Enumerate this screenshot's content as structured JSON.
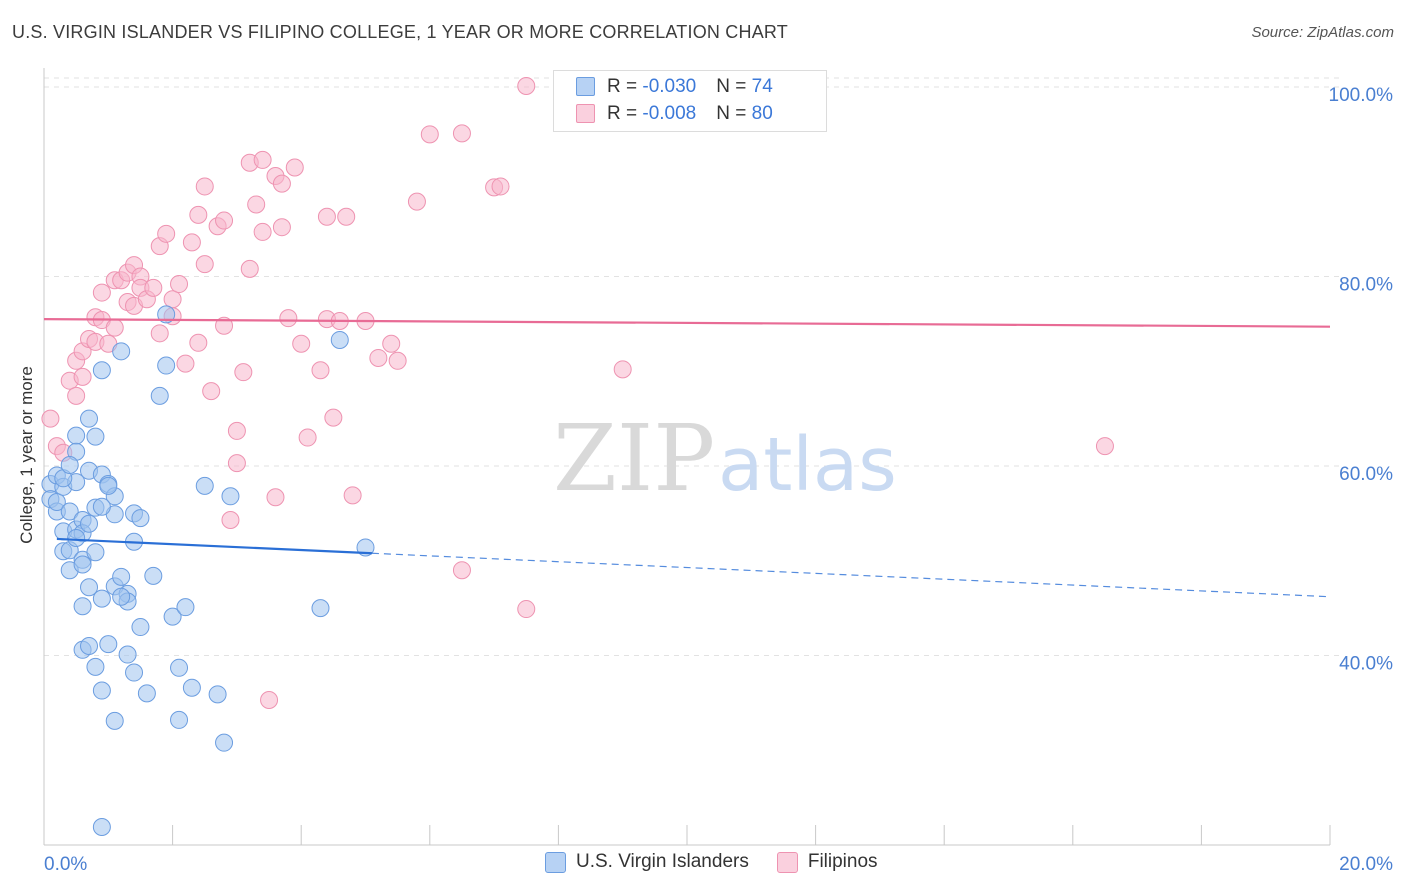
{
  "title": "U.S. VIRGIN ISLANDER VS FILIPINO COLLEGE, 1 YEAR OR MORE CORRELATION CHART",
  "source": "Source: ZipAtlas.com",
  "watermark": {
    "zip": "ZIP",
    "atlas": "atlas"
  },
  "legend": {
    "rows": [
      {
        "r_label": "R = ",
        "r_value": "-0.030",
        "n_label": "N = ",
        "n_value": "74"
      },
      {
        "r_label": "R = ",
        "r_value": "-0.008",
        "n_label": "N = ",
        "n_value": "80"
      }
    ]
  },
  "bottom_legend": [
    "U.S. Virgin Islanders",
    "Filipinos"
  ],
  "colors": {
    "blue_fill": "#9fc3ef",
    "blue_stroke": "#6b9de0",
    "blue_line": "#2a6fd6",
    "pink_fill": "#f7b7cc",
    "pink_stroke": "#ee93b1",
    "pink_line": "#e86b95",
    "tick_text": "#4a7fd1",
    "grid": "#e2e2e2"
  },
  "chart_data": {
    "type": "scatter",
    "title": "U.S. VIRGIN ISLANDER VS FILIPINO COLLEGE, 1 YEAR OR MORE CORRELATION CHART",
    "xlabel": "",
    "ylabel": "College, 1 year or more",
    "xlim": [
      0,
      20
    ],
    "ylim": [
      20,
      102
    ],
    "x_tick_labels": {
      "left": "0.0%",
      "right": "20.0%"
    },
    "y_ticks": [
      {
        "value": 100,
        "label": "100.0%"
      },
      {
        "value": 80,
        "label": "80.0%"
      },
      {
        "value": 60,
        "label": "60.0%"
      },
      {
        "value": 40,
        "label": "40.0%"
      }
    ],
    "series": [
      {
        "name": "U.S. Virgin Islanders",
        "R": -0.03,
        "N": 74,
        "trend": {
          "x0": 0.2,
          "y0": 52.3,
          "x_solid_end": 5.1,
          "x1": 20,
          "y1": 46.2
        },
        "points": [
          [
            0.1,
            58.1
          ],
          [
            0.1,
            56.5
          ],
          [
            0.2,
            55.2
          ],
          [
            0.2,
            59.0
          ],
          [
            0.2,
            56.2
          ],
          [
            0.3,
            53.1
          ],
          [
            0.3,
            51.0
          ],
          [
            0.3,
            57.8
          ],
          [
            0.4,
            55.2
          ],
          [
            0.4,
            51.1
          ],
          [
            0.4,
            49.0
          ],
          [
            0.5,
            63.2
          ],
          [
            0.5,
            61.5
          ],
          [
            0.5,
            58.3
          ],
          [
            0.5,
            53.3
          ],
          [
            0.6,
            54.3
          ],
          [
            0.6,
            52.9
          ],
          [
            0.6,
            50.1
          ],
          [
            0.6,
            45.2
          ],
          [
            0.6,
            40.6
          ],
          [
            0.7,
            65.0
          ],
          [
            0.7,
            59.5
          ],
          [
            0.7,
            53.9
          ],
          [
            0.7,
            47.2
          ],
          [
            0.7,
            41.0
          ],
          [
            0.8,
            63.1
          ],
          [
            0.8,
            55.6
          ],
          [
            0.8,
            38.8
          ],
          [
            0.9,
            70.1
          ],
          [
            0.9,
            59.1
          ],
          [
            0.9,
            46.0
          ],
          [
            0.9,
            36.3
          ],
          [
            1.0,
            58.1
          ],
          [
            1.0,
            41.2
          ],
          [
            1.1,
            56.8
          ],
          [
            1.1,
            54.9
          ],
          [
            1.1,
            47.3
          ],
          [
            1.1,
            33.1
          ],
          [
            1.2,
            72.1
          ],
          [
            1.2,
            48.3
          ],
          [
            1.3,
            46.5
          ],
          [
            1.3,
            45.7
          ],
          [
            1.4,
            55.0
          ],
          [
            1.4,
            52.0
          ],
          [
            1.4,
            38.2
          ],
          [
            1.5,
            54.5
          ],
          [
            1.5,
            43.0
          ],
          [
            1.6,
            36.0
          ],
          [
            1.7,
            48.4
          ],
          [
            1.8,
            67.4
          ],
          [
            1.9,
            70.6
          ],
          [
            1.9,
            76.0
          ],
          [
            2.0,
            44.1
          ],
          [
            2.1,
            38.7
          ],
          [
            2.1,
            33.2
          ],
          [
            2.2,
            45.1
          ],
          [
            2.3,
            36.6
          ],
          [
            2.5,
            57.9
          ],
          [
            2.7,
            35.9
          ],
          [
            2.8,
            30.8
          ],
          [
            2.9,
            56.8
          ],
          [
            4.3,
            45.0
          ],
          [
            4.6,
            73.3
          ],
          [
            5.0,
            51.4
          ],
          [
            0.3,
            58.7
          ],
          [
            0.4,
            60.1
          ],
          [
            0.5,
            52.4
          ],
          [
            0.6,
            49.6
          ],
          [
            0.8,
            50.9
          ],
          [
            0.9,
            55.7
          ],
          [
            1.0,
            57.9
          ],
          [
            1.2,
            46.2
          ],
          [
            1.3,
            40.1
          ],
          [
            0.9,
            21.9
          ]
        ]
      },
      {
        "name": "Filipinos",
        "R": -0.008,
        "N": 80,
        "trend": {
          "x0": 0.0,
          "y0": 75.5,
          "x1": 20,
          "y1": 74.7
        },
        "points": [
          [
            0.1,
            65.0
          ],
          [
            0.2,
            62.1
          ],
          [
            0.3,
            61.4
          ],
          [
            0.4,
            69.0
          ],
          [
            0.5,
            71.1
          ],
          [
            0.5,
            67.4
          ],
          [
            0.6,
            72.1
          ],
          [
            0.6,
            69.4
          ],
          [
            0.7,
            73.4
          ],
          [
            0.8,
            75.7
          ],
          [
            0.8,
            73.1
          ],
          [
            0.9,
            78.3
          ],
          [
            0.9,
            75.4
          ],
          [
            1.0,
            72.9
          ],
          [
            1.1,
            74.6
          ],
          [
            1.1,
            79.6
          ],
          [
            1.2,
            79.6
          ],
          [
            1.3,
            80.4
          ],
          [
            1.3,
            77.3
          ],
          [
            1.4,
            81.2
          ],
          [
            1.4,
            76.9
          ],
          [
            1.5,
            80.0
          ],
          [
            1.5,
            78.8
          ],
          [
            1.6,
            77.6
          ],
          [
            1.7,
            78.8
          ],
          [
            1.8,
            74.0
          ],
          [
            1.8,
            83.2
          ],
          [
            1.9,
            84.5
          ],
          [
            2.0,
            77.6
          ],
          [
            2.0,
            75.8
          ],
          [
            2.1,
            79.2
          ],
          [
            2.2,
            70.8
          ],
          [
            2.3,
            83.6
          ],
          [
            2.4,
            86.5
          ],
          [
            2.4,
            73.0
          ],
          [
            2.5,
            81.3
          ],
          [
            2.5,
            89.5
          ],
          [
            2.6,
            67.9
          ],
          [
            2.7,
            85.3
          ],
          [
            2.8,
            85.9
          ],
          [
            2.8,
            74.8
          ],
          [
            3.0,
            63.7
          ],
          [
            3.0,
            60.3
          ],
          [
            3.1,
            69.9
          ],
          [
            3.2,
            92.0
          ],
          [
            3.2,
            80.8
          ],
          [
            3.3,
            87.6
          ],
          [
            3.4,
            92.3
          ],
          [
            3.4,
            84.7
          ],
          [
            3.6,
            90.6
          ],
          [
            3.7,
            89.8
          ],
          [
            3.7,
            85.2
          ],
          [
            3.8,
            75.6
          ],
          [
            4.0,
            72.9
          ],
          [
            4.1,
            63.0
          ],
          [
            4.3,
            70.1
          ],
          [
            4.4,
            86.3
          ],
          [
            4.4,
            75.5
          ],
          [
            4.5,
            65.1
          ],
          [
            4.6,
            75.3
          ],
          [
            4.7,
            86.3
          ],
          [
            4.8,
            56.9
          ],
          [
            5.0,
            75.3
          ],
          [
            5.2,
            71.4
          ],
          [
            5.4,
            72.9
          ],
          [
            5.5,
            71.1
          ],
          [
            5.8,
            87.9
          ],
          [
            6.0,
            95.0
          ],
          [
            6.5,
            95.1
          ],
          [
            6.5,
            49.0
          ],
          [
            7.0,
            89.4
          ],
          [
            7.1,
            89.5
          ],
          [
            7.5,
            100.1
          ],
          [
            7.5,
            44.9
          ],
          [
            9.0,
            70.2
          ],
          [
            16.5,
            62.1
          ],
          [
            2.9,
            54.3
          ],
          [
            3.6,
            56.7
          ],
          [
            3.5,
            35.3
          ],
          [
            3.9,
            91.5
          ]
        ]
      }
    ]
  }
}
